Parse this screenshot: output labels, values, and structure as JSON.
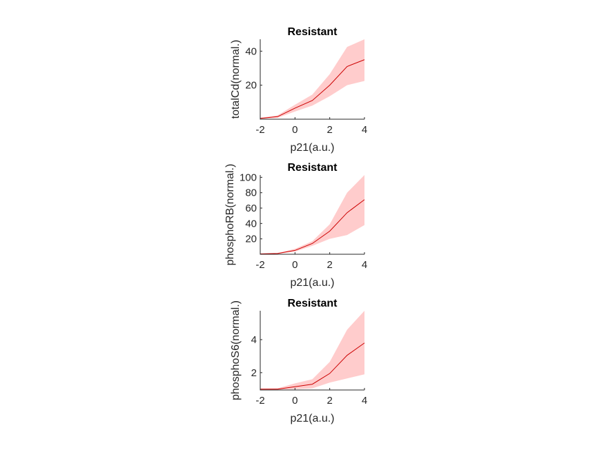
{
  "chart_data": [
    {
      "type": "line",
      "title": "Resistant",
      "xlabel": "p21(a.u.)",
      "ylabel": "totalCd(normal.)",
      "xlim": [
        -2,
        4
      ],
      "ylim": [
        0,
        47
      ],
      "xticks": [
        -2,
        0,
        2,
        4
      ],
      "xtick_labels": [
        "-2",
        "0",
        "2",
        "4"
      ],
      "yticks": [
        20,
        40
      ],
      "ytick_labels": [
        "20",
        "40"
      ],
      "line_color": "#cc0000",
      "band_color": "#ffcccc",
      "series": [
        {
          "x": [
            -2,
            -1,
            0,
            1,
            2,
            3,
            4
          ],
          "y": [
            0.5,
            1.5,
            6.5,
            11,
            20,
            31,
            35
          ],
          "lower": [
            0.3,
            0.8,
            4.5,
            8,
            13.5,
            20,
            22.5
          ],
          "upper": [
            0.8,
            2.3,
            8.5,
            14.5,
            26.5,
            42.5,
            47
          ]
        }
      ]
    },
    {
      "type": "line",
      "title": "Resistant",
      "xlabel": "p21(a.u.)",
      "ylabel": "phosphoRB(normal.)",
      "xlim": [
        -2,
        4
      ],
      "ylim": [
        0,
        103
      ],
      "xticks": [
        -2,
        0,
        2,
        4
      ],
      "xtick_labels": [
        "-2",
        "0",
        "2",
        "4"
      ],
      "yticks": [
        20,
        40,
        60,
        80,
        100
      ],
      "ytick_labels": [
        "20",
        "40",
        "60",
        "80",
        "100"
      ],
      "line_color": "#cc0000",
      "band_color": "#ffcccc",
      "series": [
        {
          "x": [
            -2,
            -1,
            0,
            1,
            2,
            3,
            4
          ],
          "y": [
            0.5,
            1,
            5,
            14,
            30,
            54,
            71
          ],
          "lower": [
            0.3,
            0.6,
            3.5,
            11,
            20,
            25,
            38
          ],
          "upper": [
            0.8,
            1.6,
            7,
            17,
            39,
            80,
            103
          ]
        }
      ]
    },
    {
      "type": "line",
      "title": "Resistant",
      "xlabel": "p21(a.u.)",
      "ylabel": "phosphoS6(normal.)",
      "xlim": [
        -2,
        4
      ],
      "ylim": [
        0.95,
        5.75
      ],
      "xticks": [
        -2,
        0,
        2,
        4
      ],
      "xtick_labels": [
        "-2",
        "0",
        "2",
        "4"
      ],
      "yticks": [
        2,
        4
      ],
      "ytick_labels": [
        "2",
        "4"
      ],
      "line_color": "#cc0000",
      "band_color": "#ffcccc",
      "series": [
        {
          "x": [
            -2,
            -1,
            0,
            1,
            2,
            3,
            4
          ],
          "y": [
            1.0,
            1.0,
            1.15,
            1.3,
            1.95,
            3.05,
            3.8
          ],
          "lower": [
            0.97,
            0.97,
            1.0,
            1.05,
            1.4,
            1.65,
            1.9
          ],
          "upper": [
            1.03,
            1.05,
            1.35,
            1.6,
            2.65,
            4.6,
            5.75
          ]
        }
      ]
    }
  ]
}
